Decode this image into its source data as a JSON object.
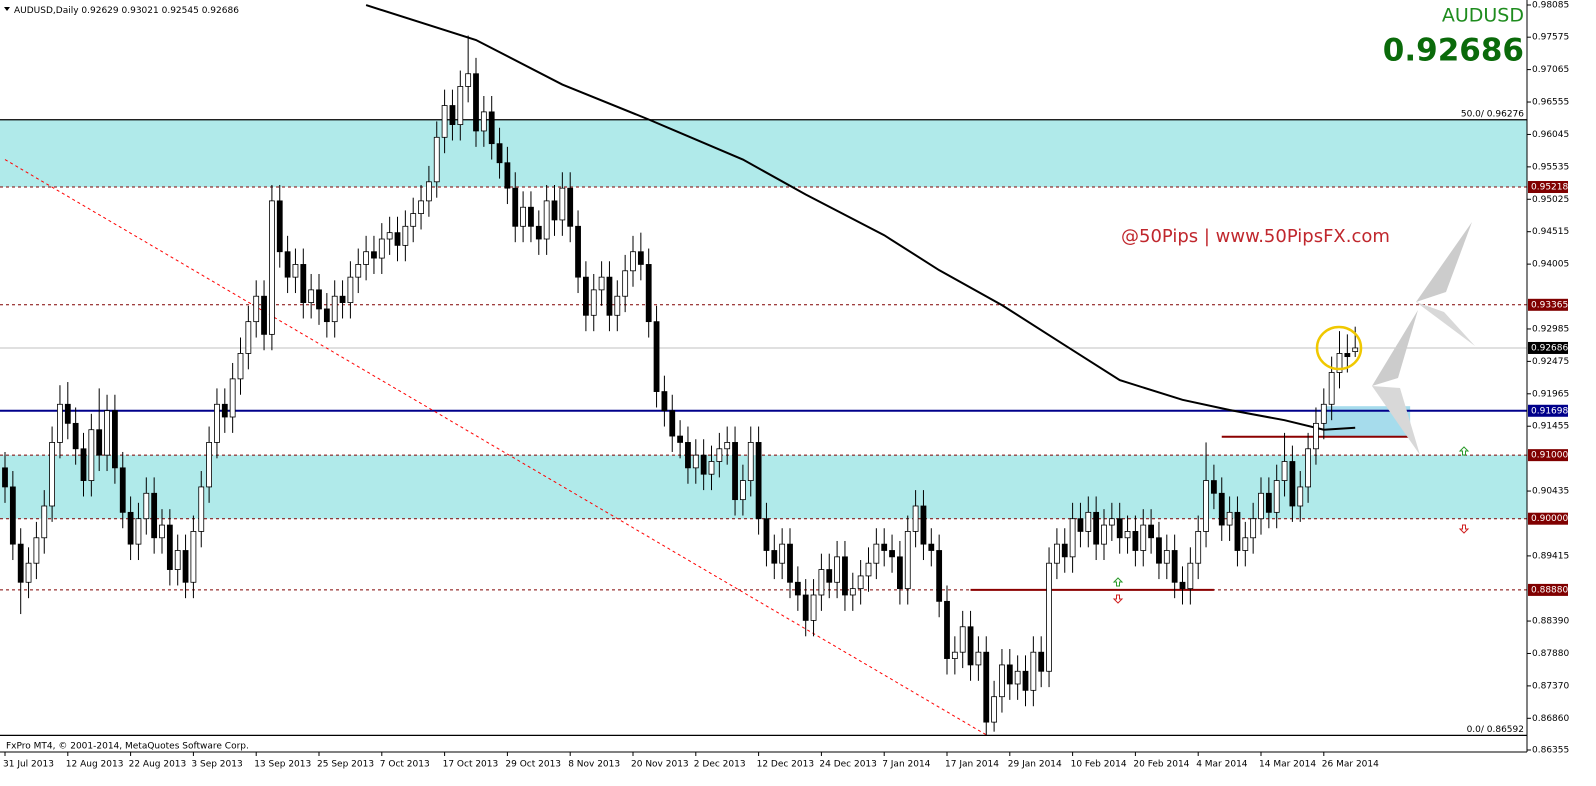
{
  "chart_data": {
    "type": "candlestick",
    "symbol": "AUDUSD,Daily",
    "symbol_name": "AUDUSD",
    "watermark": "@50Pips | www.50PipsFX.com",
    "copyright": "FxPro MT4, © 2001-2014, MetaQuotes Software Corp.",
    "up_color": "#ffffff",
    "down_color": "#000000",
    "bid_line_color": "#c0c0c0",
    "ylim": [
      0.8633,
      0.9816
    ],
    "yticks": [
      0.98085,
      0.97575,
      0.97065,
      0.96555,
      0.96045,
      0.95535,
      0.95025,
      0.94515,
      0.94005,
      0.92985,
      0.92475,
      0.91965,
      0.91455,
      0.90435,
      0.89415,
      {
        "value": 0.8839,
        "label": "0.88390"
      },
      {
        "value": 0.8788,
        "label": "0.87880"
      },
      {
        "value": 0.8737,
        "label": "0.87370"
      },
      {
        "value": 0.8686,
        "label": "0.86860"
      },
      0.86355
    ],
    "categories": [
      "31 Jul 2013",
      null,
      null,
      null,
      null,
      null,
      null,
      null,
      "12 Aug 2013",
      null,
      null,
      null,
      null,
      null,
      null,
      null,
      "22 Aug 2013",
      null,
      null,
      null,
      null,
      null,
      null,
      null,
      "3 Sep 2013",
      null,
      null,
      null,
      null,
      null,
      null,
      null,
      "13 Sep 2013",
      null,
      null,
      null,
      null,
      null,
      null,
      null,
      "25 Sep 2013",
      null,
      null,
      null,
      null,
      null,
      null,
      null,
      "7 Oct 2013",
      null,
      null,
      null,
      null,
      null,
      null,
      null,
      "17 Oct 2013",
      null,
      null,
      null,
      null,
      null,
      null,
      null,
      "29 Oct 2013",
      null,
      null,
      null,
      null,
      null,
      null,
      null,
      "8 Nov 2013",
      null,
      null,
      null,
      null,
      null,
      null,
      null,
      "20 Nov 2013",
      null,
      null,
      null,
      null,
      null,
      null,
      null,
      "2 Dec 2013",
      null,
      null,
      null,
      null,
      null,
      null,
      null,
      "12 Dec 2013",
      null,
      null,
      null,
      null,
      null,
      null,
      null,
      "24 Dec 2013",
      null,
      null,
      null,
      null,
      null,
      null,
      null,
      "7 Jan 2014",
      null,
      null,
      null,
      null,
      null,
      null,
      null,
      "17 Jan 2014",
      null,
      null,
      null,
      null,
      null,
      null,
      null,
      "29 Jan 2014",
      null,
      null,
      null,
      null,
      null,
      null,
      null,
      "10 Feb 2014",
      null,
      null,
      null,
      null,
      null,
      null,
      null,
      "20 Feb 2014",
      null,
      null,
      null,
      null,
      null,
      null,
      null,
      "4 Mar 2014",
      null,
      null,
      null,
      null,
      null,
      null,
      null,
      "14 Mar 2014",
      null,
      null,
      null,
      null,
      null,
      null,
      null,
      "26 Mar 2014",
      null,
      null,
      null,
      null
    ],
    "ohlc": [
      [
        0.908,
        0.9105,
        0.9025,
        0.905
      ],
      [
        0.905,
        0.9075,
        0.8935,
        0.896
      ],
      [
        0.896,
        0.8985,
        0.885,
        0.89
      ],
      [
        0.89,
        0.8955,
        0.8875,
        0.893
      ],
      [
        0.893,
        0.8995,
        0.8905,
        0.897
      ],
      [
        0.897,
        0.9045,
        0.8945,
        0.902
      ],
      [
        0.902,
        0.9145,
        0.8995,
        0.912
      ],
      [
        0.912,
        0.921,
        0.9095,
        0.918
      ],
      [
        0.918,
        0.9215,
        0.9125,
        0.915
      ],
      [
        0.915,
        0.9175,
        0.9085,
        0.911
      ],
      [
        0.911,
        0.9135,
        0.9035,
        0.906
      ],
      [
        0.906,
        0.9165,
        0.9035,
        0.914
      ],
      [
        0.914,
        0.9205,
        0.9075,
        0.91
      ],
      [
        0.91,
        0.9195,
        0.9075,
        0.917
      ],
      [
        0.917,
        0.9195,
        0.9055,
        0.908
      ],
      [
        0.908,
        0.9105,
        0.8985,
        0.901
      ],
      [
        0.901,
        0.9035,
        0.8935,
        0.896
      ],
      [
        0.896,
        0.9025,
        0.8935,
        0.9
      ],
      [
        0.9,
        0.9065,
        0.8975,
        0.904
      ],
      [
        0.904,
        0.9065,
        0.8945,
        0.897
      ],
      [
        0.897,
        0.9015,
        0.8945,
        0.899
      ],
      [
        0.899,
        0.9015,
        0.8895,
        0.892
      ],
      [
        0.892,
        0.8975,
        0.8895,
        0.895
      ],
      [
        0.895,
        0.8975,
        0.8875,
        0.89
      ],
      [
        0.89,
        0.9005,
        0.8875,
        0.898
      ],
      [
        0.898,
        0.9075,
        0.8955,
        0.905
      ],
      [
        0.905,
        0.9145,
        0.9025,
        0.912
      ],
      [
        0.912,
        0.9205,
        0.9095,
        0.918
      ],
      [
        0.918,
        0.9205,
        0.9135,
        0.916
      ],
      [
        0.916,
        0.9245,
        0.9135,
        0.922
      ],
      [
        0.922,
        0.9285,
        0.9195,
        0.926
      ],
      [
        0.926,
        0.9335,
        0.9235,
        0.931
      ],
      [
        0.931,
        0.9375,
        0.9285,
        0.935
      ],
      [
        0.935,
        0.9375,
        0.9265,
        0.929
      ],
      [
        0.929,
        0.9525,
        0.9265,
        0.95
      ],
      [
        0.95,
        0.9525,
        0.9395,
        0.942
      ],
      [
        0.942,
        0.9445,
        0.9355,
        0.938
      ],
      [
        0.938,
        0.9425,
        0.9355,
        0.94
      ],
      [
        0.94,
        0.9425,
        0.9315,
        0.934
      ],
      [
        0.934,
        0.9385,
        0.9315,
        0.936
      ],
      [
        0.936,
        0.9385,
        0.9305,
        0.933
      ],
      [
        0.933,
        0.9355,
        0.9285,
        0.931
      ],
      [
        0.931,
        0.9375,
        0.9285,
        0.935
      ],
      [
        0.935,
        0.9375,
        0.9315,
        0.934
      ],
      [
        0.934,
        0.9405,
        0.9315,
        0.938
      ],
      [
        0.938,
        0.9425,
        0.9355,
        0.94
      ],
      [
        0.94,
        0.9445,
        0.9375,
        0.942
      ],
      [
        0.942,
        0.9445,
        0.9385,
        0.941
      ],
      [
        0.941,
        0.9465,
        0.9385,
        0.944
      ],
      [
        0.944,
        0.9475,
        0.9415,
        0.945
      ],
      [
        0.945,
        0.9475,
        0.9405,
        0.943
      ],
      [
        0.943,
        0.9485,
        0.9405,
        0.946
      ],
      [
        0.946,
        0.9505,
        0.9435,
        0.948
      ],
      [
        0.948,
        0.9525,
        0.9455,
        0.95
      ],
      [
        0.95,
        0.9555,
        0.9475,
        0.953
      ],
      [
        0.953,
        0.9625,
        0.9505,
        0.96
      ],
      [
        0.96,
        0.9675,
        0.9575,
        0.965
      ],
      [
        0.965,
        0.9675,
        0.9595,
        0.962
      ],
      [
        0.962,
        0.9705,
        0.9595,
        0.968
      ],
      [
        0.968,
        0.976,
        0.9655,
        0.97
      ],
      [
        0.97,
        0.9725,
        0.9585,
        0.961
      ],
      [
        0.961,
        0.9665,
        0.9585,
        0.964
      ],
      [
        0.964,
        0.9665,
        0.9565,
        0.959
      ],
      [
        0.959,
        0.9615,
        0.9535,
        0.956
      ],
      [
        0.956,
        0.9585,
        0.9495,
        0.952
      ],
      [
        0.952,
        0.9545,
        0.9435,
        0.946
      ],
      [
        0.946,
        0.9515,
        0.9435,
        0.949
      ],
      [
        0.949,
        0.9515,
        0.9435,
        0.946
      ],
      [
        0.946,
        0.9485,
        0.9415,
        0.944
      ],
      [
        0.944,
        0.9525,
        0.9415,
        0.95
      ],
      [
        0.95,
        0.9525,
        0.9445,
        0.947
      ],
      [
        0.947,
        0.9545,
        0.9445,
        0.952
      ],
      [
        0.952,
        0.9545,
        0.9435,
        0.946
      ],
      [
        0.946,
        0.9485,
        0.9355,
        0.938
      ],
      [
        0.938,
        0.9405,
        0.9295,
        0.932
      ],
      [
        0.932,
        0.9385,
        0.9295,
        0.936
      ],
      [
        0.936,
        0.9405,
        0.9335,
        0.938
      ],
      [
        0.938,
        0.9405,
        0.9295,
        0.932
      ],
      [
        0.932,
        0.9375,
        0.9295,
        0.935
      ],
      [
        0.935,
        0.9415,
        0.9325,
        0.939
      ],
      [
        0.939,
        0.9445,
        0.9365,
        0.942
      ],
      [
        0.942,
        0.945,
        0.9375,
        0.94
      ],
      [
        0.94,
        0.9425,
        0.9285,
        0.931
      ],
      [
        0.931,
        0.9335,
        0.9175,
        0.92
      ],
      [
        0.92,
        0.9225,
        0.9145,
        0.917
      ],
      [
        0.917,
        0.9195,
        0.9105,
        0.913
      ],
      [
        0.913,
        0.9155,
        0.9095,
        0.912
      ],
      [
        0.912,
        0.9145,
        0.9055,
        0.908
      ],
      [
        0.908,
        0.9125,
        0.9055,
        0.91
      ],
      [
        0.91,
        0.9125,
        0.9045,
        0.907
      ],
      [
        0.907,
        0.9115,
        0.9045,
        0.909
      ],
      [
        0.909,
        0.9135,
        0.9065,
        0.911
      ],
      [
        0.911,
        0.9145,
        0.9085,
        0.912
      ],
      [
        0.912,
        0.9145,
        0.9005,
        0.903
      ],
      [
        0.903,
        0.9085,
        0.9005,
        0.906
      ],
      [
        0.906,
        0.9145,
        0.9035,
        0.912
      ],
      [
        0.912,
        0.9145,
        0.8975,
        0.9
      ],
      [
        0.9,
        0.9025,
        0.8925,
        0.895
      ],
      [
        0.895,
        0.8975,
        0.8905,
        0.893
      ],
      [
        0.893,
        0.8985,
        0.8905,
        0.896
      ],
      [
        0.896,
        0.8985,
        0.8875,
        0.89
      ],
      [
        0.89,
        0.8925,
        0.8855,
        0.888
      ],
      [
        0.888,
        0.8905,
        0.8815,
        0.884
      ],
      [
        0.884,
        0.8905,
        0.8815,
        0.888
      ],
      [
        0.888,
        0.8945,
        0.8855,
        0.892
      ],
      [
        0.892,
        0.8945,
        0.8875,
        0.89
      ],
      [
        0.89,
        0.8965,
        0.8875,
        0.894
      ],
      [
        0.894,
        0.8965,
        0.8855,
        0.888
      ],
      [
        0.888,
        0.8915,
        0.8855,
        0.889
      ],
      [
        0.889,
        0.8935,
        0.8865,
        0.891
      ],
      [
        0.891,
        0.8955,
        0.8885,
        0.893
      ],
      [
        0.893,
        0.8985,
        0.8905,
        0.896
      ],
      [
        0.896,
        0.8985,
        0.8925,
        0.895
      ],
      [
        0.895,
        0.8975,
        0.8915,
        0.894
      ],
      [
        0.894,
        0.8965,
        0.8865,
        0.889
      ],
      [
        0.889,
        0.9005,
        0.8865,
        0.898
      ],
      [
        0.898,
        0.9045,
        0.8955,
        0.902
      ],
      [
        0.902,
        0.9045,
        0.8935,
        0.896
      ],
      [
        0.896,
        0.8985,
        0.8925,
        0.895
      ],
      [
        0.895,
        0.8975,
        0.8845,
        0.887
      ],
      [
        0.887,
        0.8895,
        0.8755,
        0.878
      ],
      [
        0.878,
        0.8815,
        0.8755,
        0.879
      ],
      [
        0.879,
        0.8855,
        0.8765,
        0.883
      ],
      [
        0.883,
        0.8855,
        0.8745,
        0.877
      ],
      [
        0.877,
        0.8815,
        0.8745,
        0.879
      ],
      [
        0.879,
        0.8815,
        0.8659,
        0.868
      ],
      [
        0.868,
        0.8745,
        0.8665,
        0.872
      ],
      [
        0.872,
        0.8795,
        0.8695,
        0.877
      ],
      [
        0.877,
        0.8795,
        0.8715,
        0.874
      ],
      [
        0.874,
        0.8785,
        0.8715,
        0.876
      ],
      [
        0.876,
        0.8785,
        0.8705,
        0.873
      ],
      [
        0.873,
        0.8815,
        0.8705,
        0.879
      ],
      [
        0.879,
        0.8815,
        0.8735,
        0.876
      ],
      [
        0.876,
        0.8955,
        0.8735,
        0.893
      ],
      [
        0.893,
        0.8985,
        0.8905,
        0.896
      ],
      [
        0.896,
        0.8985,
        0.8915,
        0.894
      ],
      [
        0.894,
        0.9025,
        0.8915,
        0.9
      ],
      [
        0.9,
        0.9025,
        0.8955,
        0.898
      ],
      [
        0.898,
        0.9035,
        0.8955,
        0.901
      ],
      [
        0.901,
        0.9035,
        0.8935,
        0.896
      ],
      [
        0.896,
        0.9015,
        0.8935,
        0.899
      ],
      [
        0.899,
        0.9025,
        0.8965,
        0.9
      ],
      [
        0.9,
        0.9025,
        0.8945,
        0.897
      ],
      [
        0.897,
        0.9005,
        0.8945,
        0.898
      ],
      [
        0.898,
        0.9005,
        0.8925,
        0.895
      ],
      [
        0.895,
        0.9015,
        0.8925,
        0.899
      ],
      [
        0.899,
        0.9015,
        0.8945,
        0.897
      ],
      [
        0.897,
        0.8995,
        0.8905,
        0.893
      ],
      [
        0.893,
        0.8975,
        0.8905,
        0.895
      ],
      [
        0.895,
        0.8975,
        0.8875,
        0.89
      ],
      [
        0.89,
        0.8925,
        0.8865,
        0.889
      ],
      [
        0.889,
        0.8955,
        0.8865,
        0.893
      ],
      [
        0.893,
        0.9005,
        0.8905,
        0.898
      ],
      [
        0.898,
        0.912,
        0.8955,
        0.906
      ],
      [
        0.906,
        0.9085,
        0.9015,
        0.904
      ],
      [
        0.904,
        0.9065,
        0.8965,
        0.899
      ],
      [
        0.899,
        0.9035,
        0.8965,
        0.901
      ],
      [
        0.901,
        0.9035,
        0.8925,
        0.895
      ],
      [
        0.895,
        0.8995,
        0.8925,
        0.897
      ],
      [
        0.897,
        0.9025,
        0.8945,
        0.9
      ],
      [
        0.9,
        0.9065,
        0.8975,
        0.904
      ],
      [
        0.904,
        0.9065,
        0.8985,
        0.901
      ],
      [
        0.901,
        0.9085,
        0.8985,
        0.906
      ],
      [
        0.906,
        0.9135,
        0.9035,
        0.909
      ],
      [
        0.909,
        0.9115,
        0.8995,
        0.902
      ],
      [
        0.902,
        0.9075,
        0.8995,
        0.905
      ],
      [
        0.905,
        0.9135,
        0.9025,
        0.911
      ],
      [
        0.911,
        0.9175,
        0.9085,
        0.915
      ],
      [
        0.915,
        0.9205,
        0.9125,
        0.918
      ],
      [
        0.918,
        0.9255,
        0.9155,
        0.923
      ],
      [
        0.923,
        0.9295,
        0.9205,
        0.926
      ],
      [
        0.926,
        0.929,
        0.923,
        0.9255
      ],
      [
        0.92629,
        0.93021,
        0.92545,
        0.92686
      ]
    ],
    "moving_average": {
      "color": "#000000",
      "x": [
        46,
        60,
        71,
        82,
        94,
        102,
        112,
        119,
        127,
        135,
        142,
        150,
        156,
        163,
        168,
        172
      ],
      "values": [
        0.9808,
        0.9753,
        0.9683,
        0.9628,
        0.9565,
        0.951,
        0.9446,
        0.9391,
        0.9336,
        0.9273,
        0.9218,
        0.9187,
        0.9171,
        0.9155,
        0.914,
        0.9143
      ]
    },
    "zones": [
      {
        "from": 0.95218,
        "to": 0.96276,
        "color": "#b0eaea"
      },
      {
        "from": 0.9,
        "to": 0.91,
        "color": "#b0eaea"
      },
      {
        "from": 0.9129,
        "to": 0.9177,
        "x": [
          168,
          179
        ],
        "color": "#a6dcec"
      }
    ],
    "fibonacci": [
      {
        "value": 0.96276,
        "label": "50.0/ 0.96276"
      },
      {
        "value": 0.86592,
        "label": "0.0/ 0.86592"
      }
    ],
    "levels": [
      {
        "value": 0.95218,
        "color": "#800000",
        "style": "dotted"
      },
      {
        "value": 0.93365,
        "color": "#800000",
        "style": "dotted"
      },
      {
        "value": 0.91698,
        "color": "#00008b",
        "style": "solid"
      },
      {
        "value": 0.91,
        "label": "0.91000",
        "color": "#800000",
        "style": "dotted"
      },
      {
        "value": 0.9,
        "label": "0.90000",
        "color": "#800000",
        "style": "dotted"
      },
      {
        "value": 0.8888,
        "label": "0.88880",
        "color": "#800000",
        "style": "dotted"
      }
    ],
    "segments": [
      {
        "x": [
          123,
          154
        ],
        "y": 0.8888,
        "color": "#8b0000"
      },
      {
        "x": [
          155,
          179
        ],
        "y": 0.9129,
        "color": "#8b0000"
      }
    ],
    "trendline": {
      "x": [
        0,
        125
      ],
      "y": [
        0.9565,
        0.866
      ],
      "color": "#ff0000"
    }
  }
}
